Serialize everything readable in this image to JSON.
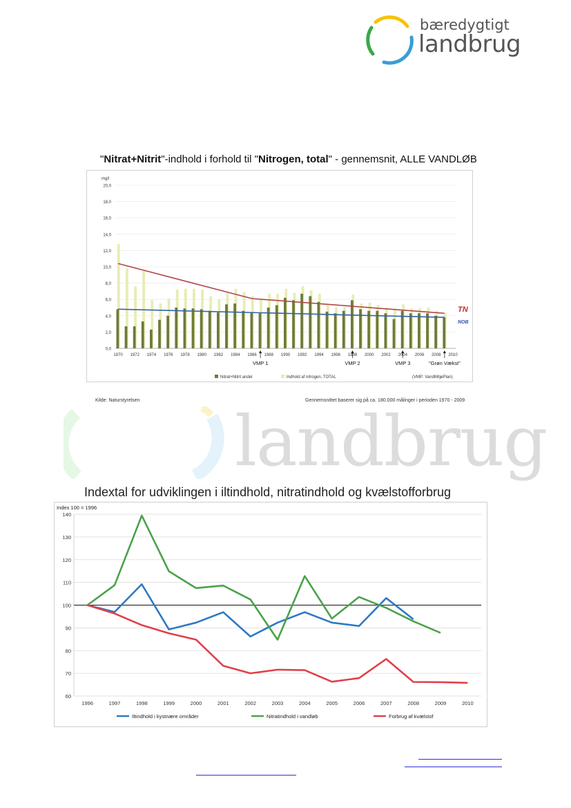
{
  "logo": {
    "line1": "bæredygtigt",
    "line2": "landbrug",
    "icon": "circle-arcs-logo",
    "colors": [
      "#f5c400",
      "#3a9dd6",
      "#3aa84a"
    ]
  },
  "watermark": {
    "word": "landbrug"
  },
  "chart1": {
    "title_parts": [
      {
        "text": "\"",
        "bold": false
      },
      {
        "text": "Nitrat+Nitrit",
        "bold": true
      },
      {
        "text": "\"-indhold i forhold til \"",
        "bold": false
      },
      {
        "text": "Nitrogen, total",
        "bold": true
      },
      {
        "text": "\" - gennemsnit, ALLE VANDLØB",
        "bold": false
      }
    ],
    "source": "Kilde: Naturstyrelsen",
    "note": "Gennemsnittet baserer sig på ca. 180.000 målinger i perioden 1970 - 2009",
    "annotation_tn": "TN",
    "annotation_nob": "NOB",
    "vmp_labels": [
      {
        "label": "VMP 1",
        "year": 1987
      },
      {
        "label": "VMP 2",
        "year": 1998
      },
      {
        "label": "VMP 3",
        "year": 2004
      },
      {
        "label": "\"Grøn Vækst\"",
        "year": 2009
      }
    ],
    "vmp_footnote": "(VMP: VandMiljøPlan)",
    "chart_data": {
      "type": "bar",
      "ylabel": "mg/l",
      "ylim": [
        0,
        20
      ],
      "yticks": [
        "0,0",
        "2,0",
        "4,0",
        "6,0",
        "8,0",
        "10,0",
        "12,0",
        "14,0",
        "16,0",
        "18,0",
        "20,0"
      ],
      "x": [
        1970,
        1971,
        1972,
        1973,
        1974,
        1975,
        1976,
        1977,
        1978,
        1979,
        1980,
        1981,
        1982,
        1983,
        1984,
        1985,
        1986,
        1987,
        1988,
        1989,
        1990,
        1991,
        1992,
        1993,
        1994,
        1995,
        1996,
        1997,
        1998,
        1999,
        2000,
        2001,
        2002,
        2003,
        2004,
        2005,
        2006,
        2007,
        2008,
        2009
      ],
      "xtick_labels": [
        "1970",
        "1972",
        "1974",
        "1976",
        "1978",
        "1980",
        "1982",
        "1984",
        "1986",
        "1988",
        "1990",
        "1992",
        "1994",
        "1996",
        "1998",
        "2000",
        "2002",
        "2004",
        "2006",
        "2008",
        "2010"
      ],
      "series": [
        {
          "name": "Nitrat+Nitrit andel",
          "color": "#6f7a3a",
          "values": [
            4.8,
            2.7,
            2.7,
            3.3,
            2.3,
            3.5,
            4.0,
            5.0,
            4.9,
            4.9,
            4.8,
            4.6,
            4.4,
            5.4,
            5.5,
            4.6,
            4.4,
            4.3,
            5.0,
            5.3,
            6.2,
            5.9,
            6.7,
            6.4,
            5.7,
            4.5,
            4.3,
            4.6,
            5.9,
            4.8,
            4.6,
            4.6,
            4.3,
            3.6,
            4.6,
            4.3,
            4.3,
            4.3,
            4.0,
            3.8
          ]
        },
        {
          "name": "Indhold af nitrogen, TOTAL",
          "color": "#e8ecb4",
          "values": [
            12.8,
            9.8,
            7.6,
            9.5,
            5.9,
            5.5,
            6.1,
            7.2,
            7.3,
            7.3,
            7.2,
            6.4,
            6.0,
            6.8,
            7.3,
            6.9,
            6.4,
            6.0,
            6.7,
            6.7,
            7.3,
            6.8,
            7.6,
            7.1,
            6.7,
            5.3,
            5.0,
            5.1,
            6.6,
            5.5,
            5.6,
            5.3,
            5.0,
            4.9,
            5.4,
            4.9,
            4.9,
            5.0,
            4.6,
            4.3
          ]
        }
      ],
      "trend_lines": [
        {
          "color": "#b04848",
          "points": [
            [
              1970,
              10.4
            ],
            [
              1986,
              6.1
            ],
            [
              2009,
              4.3
            ]
          ]
        },
        {
          "color": "#3562a8",
          "points": [
            [
              1970,
              4.8
            ],
            [
              2009,
              3.8
            ]
          ]
        }
      ]
    }
  },
  "chart2": {
    "title": "Indextal for udviklingen i iltindhold, nitratindhold og kvælstofforbrug",
    "chart_data": {
      "type": "line",
      "ylabel": "Index 100 = 1996",
      "ylim": [
        60,
        140
      ],
      "yticks": [
        60,
        70,
        80,
        90,
        100,
        110,
        120,
        130,
        140
      ],
      "x": [
        1996,
        1997,
        1998,
        1999,
        2000,
        2001,
        2002,
        2003,
        2004,
        2005,
        2006,
        2007,
        2008,
        2009,
        2010
      ],
      "reference_line": 100,
      "series": [
        {
          "name": "Iltindhold i kystnære områder",
          "color": "#2f78c4",
          "values": [
            100,
            97,
            109.2,
            89.3,
            92.3,
            96.9,
            86.2,
            92.3,
            96.9,
            92.3,
            90.8,
            103.1,
            93.8,
            null,
            null
          ]
        },
        {
          "name": "Nitratindhold i vandløb",
          "color": "#4aa24a",
          "values": [
            100,
            108.8,
            139.4,
            114.9,
            107.5,
            108.6,
            102.5,
            84.8,
            112.8,
            94.1,
            103.6,
            98.8,
            92.9,
            87.8,
            null
          ]
        },
        {
          "name": "Forbrug af kvælstof",
          "color": "#e0404a",
          "values": [
            100,
            96.3,
            91.2,
            87.6,
            84.8,
            73.3,
            70,
            71.6,
            71.4,
            66.3,
            67.9,
            76.3,
            66.2,
            66.1,
            65.8
          ]
        }
      ]
    }
  },
  "links": {
    "color": "#2f2fd8"
  }
}
